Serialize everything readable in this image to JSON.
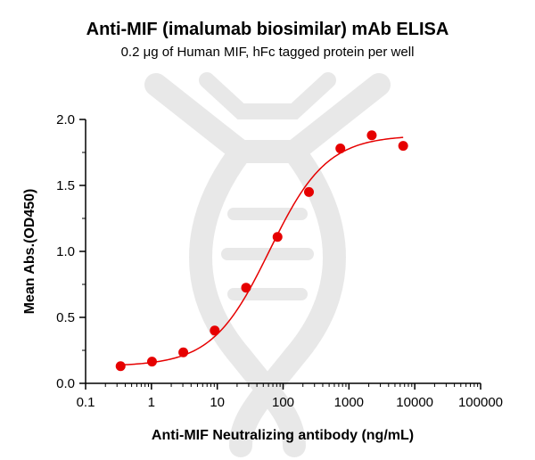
{
  "chart_data": {
    "type": "scatter",
    "title": "Anti-MIF (imalumab biosimilar) mAb ELISA",
    "subtitle": "0.2 μg of Human MIF, hFc tagged protein per well",
    "xlabel": "Anti-MIF Neutralizing antibody (ng/mL)",
    "ylabel": "Mean Abs.(OD450)",
    "x_scale": "log",
    "xlim": [
      0.1,
      100000
    ],
    "ylim": [
      0,
      2.0
    ],
    "x_ticks": [
      "0.1",
      "1",
      "10",
      "100",
      "1000",
      "10000",
      "100000"
    ],
    "y_ticks": [
      "0.0",
      "0.5",
      "1.0",
      "1.5",
      "2.0"
    ],
    "grid": false,
    "legend": "none",
    "point_color": "#e60000",
    "curve_color": "#e60000",
    "fit": {
      "bottom": 0.13,
      "top": 1.88,
      "ec50": 62,
      "hill": 1.0
    },
    "series": [
      {
        "x": [
          0.34,
          1.02,
          3.05,
          9.15,
          27.4,
          82.3,
          247,
          741,
          2222,
          6667
        ],
        "y": [
          0.13,
          0.165,
          0.235,
          0.4,
          0.725,
          1.11,
          1.45,
          1.78,
          1.88,
          1.8
        ]
      }
    ]
  }
}
